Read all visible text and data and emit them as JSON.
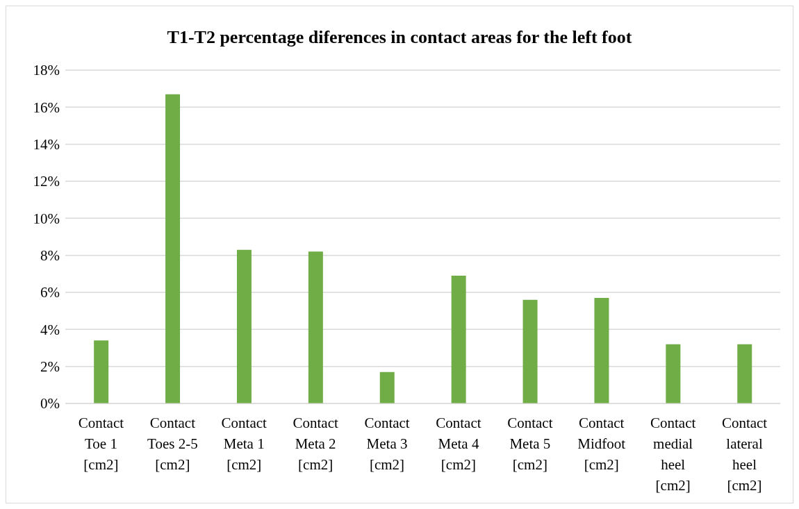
{
  "chart_data": {
    "type": "bar",
    "title": "T1-T2 percentage diferences in contact areas for the left foot",
    "categories": [
      "Contact Toe 1 [cm2]",
      "Contact Toes 2-5 [cm2]",
      "Contact Meta 1 [cm2]",
      "Contact Meta 2 [cm2]",
      "Contact Meta 3 [cm2]",
      "Contact Meta 4 [cm2]",
      "Contact Meta 5 [cm2]",
      "Contact Midfoot [cm2]",
      "Contact medial heel [cm2]",
      "Contact lateral heel [cm2]"
    ],
    "values": [
      3.4,
      16.7,
      8.3,
      8.2,
      1.7,
      6.9,
      5.6,
      5.7,
      3.2,
      3.2
    ],
    "color": "#70ad47",
    "ylim": [
      0,
      18
    ],
    "yticks": [
      {
        "value": 0,
        "label": "0%"
      },
      {
        "value": 2,
        "label": "2%"
      },
      {
        "value": 4,
        "label": "4%"
      },
      {
        "value": 6,
        "label": "6%"
      },
      {
        "value": 8,
        "label": "8%"
      },
      {
        "value": 10,
        "label": "10%"
      },
      {
        "value": 12,
        "label": "12%"
      },
      {
        "value": 14,
        "label": "14%"
      },
      {
        "value": 16,
        "label": "16%"
      },
      {
        "value": 18,
        "label": "18%"
      }
    ],
    "grid": "y",
    "legend": false
  }
}
